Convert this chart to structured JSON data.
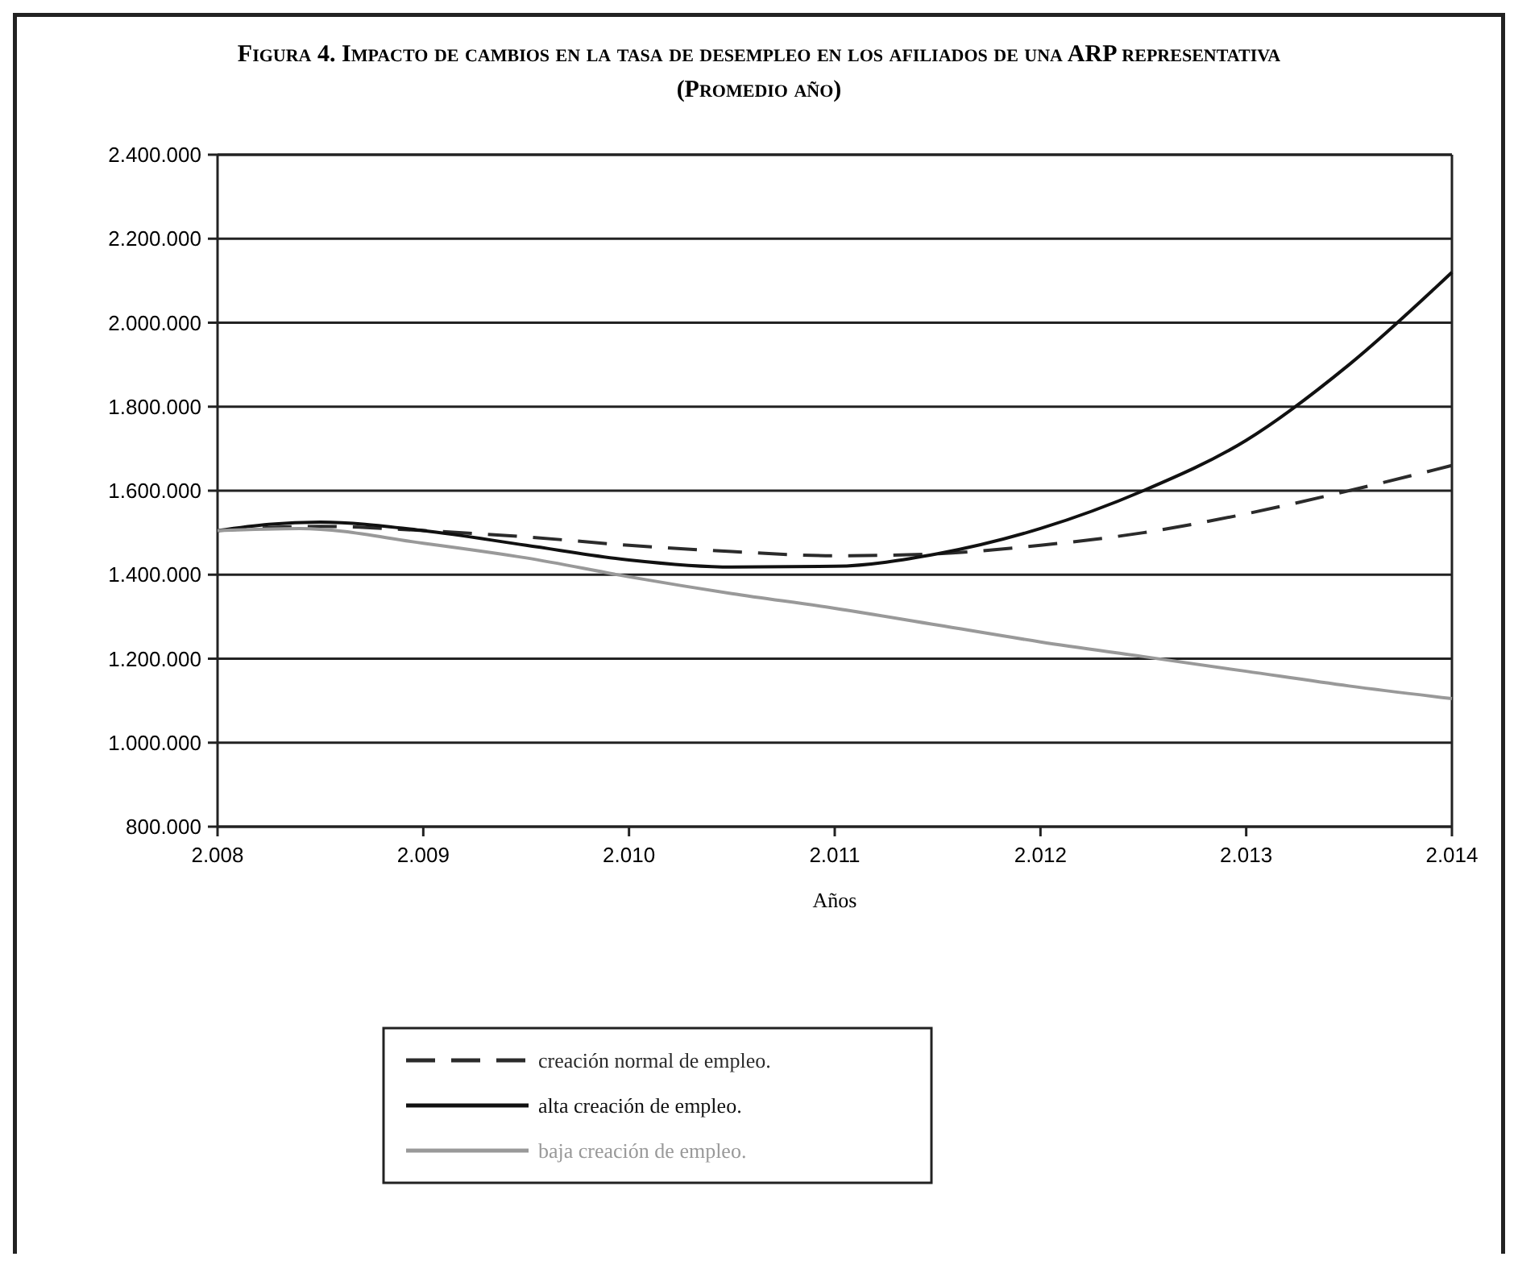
{
  "chart_data": {
    "type": "line",
    "title": "Figura 4. Impacto de cambios en la tasa de desempleo en los afiliados de una ARP representativa",
    "subtitle": "(Promedio año)",
    "xlabel": "Años",
    "xlim": [
      2008,
      2014
    ],
    "xticks": [
      {
        "value": 2008,
        "label": "2.008"
      },
      {
        "value": 2009,
        "label": "2.009"
      },
      {
        "value": 2010,
        "label": "2.010"
      },
      {
        "value": 2011,
        "label": "2.011"
      },
      {
        "value": 2012,
        "label": "2.012"
      },
      {
        "value": 2013,
        "label": "2.013"
      },
      {
        "value": 2014,
        "label": "2.014"
      }
    ],
    "ylim": [
      800000,
      2400000
    ],
    "yticks": [
      {
        "value": 800000,
        "label": "800.000"
      },
      {
        "value": 1000000,
        "label": "1.000.000"
      },
      {
        "value": 1200000,
        "label": "1.200.000"
      },
      {
        "value": 1400000,
        "label": "1.400.000"
      },
      {
        "value": 1600000,
        "label": "1.600.000"
      },
      {
        "value": 1800000,
        "label": "1.800.000"
      },
      {
        "value": 2000000,
        "label": "2.000.000"
      },
      {
        "value": 2200000,
        "label": "2.200.000"
      },
      {
        "value": 2400000,
        "label": "2.400.000"
      }
    ],
    "grid": "y",
    "legend": "bottom",
    "marker": "none",
    "series": [
      {
        "name": "creación normal de empleo.",
        "color": "#2b2b2b",
        "line_style": "dashed",
        "x": [
          2008,
          2008.5,
          2009,
          2009.5,
          2010,
          2010.5,
          2011,
          2011.5,
          2012,
          2012.5,
          2013,
          2013.5,
          2014
        ],
        "values": [
          1505000,
          1515000,
          1505000,
          1490000,
          1470000,
          1455000,
          1445000,
          1450000,
          1470000,
          1500000,
          1545000,
          1600000,
          1660000
        ]
      },
      {
        "name": "alta creación de empleo.",
        "color": "#111111",
        "line_style": "solid",
        "x": [
          2008,
          2008.25,
          2008.5,
          2009,
          2009.5,
          2010,
          2010.5,
          2011,
          2011.5,
          2012,
          2012.5,
          2013,
          2013.5,
          2014
        ],
        "values": [
          1505000,
          1520000,
          1525000,
          1505000,
          1470000,
          1435000,
          1418000,
          1420000,
          1450000,
          1510000,
          1600000,
          1720000,
          1900000,
          2120000
        ]
      },
      {
        "name": "baja creación de empleo.",
        "color": "#999999",
        "line_style": "solid",
        "x": [
          2008,
          2008.4,
          2009,
          2009.5,
          2010,
          2010.5,
          2011,
          2011.5,
          2012,
          2012.5,
          2013,
          2013.5,
          2014
        ],
        "values": [
          1505000,
          1510000,
          1475000,
          1440000,
          1395000,
          1355000,
          1320000,
          1280000,
          1240000,
          1205000,
          1170000,
          1135000,
          1105000
        ]
      }
    ]
  }
}
